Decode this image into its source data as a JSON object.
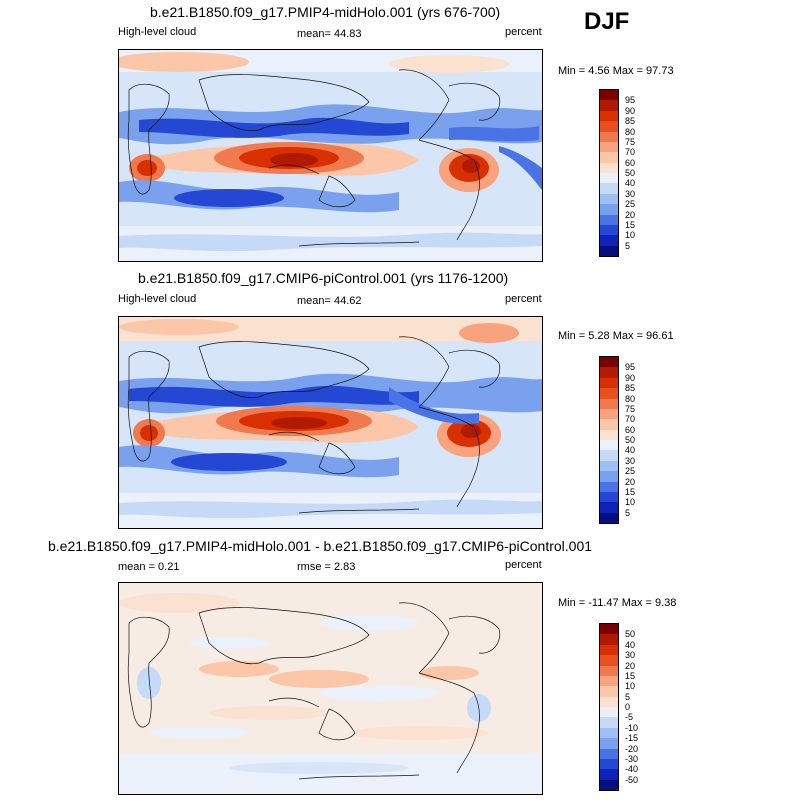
{
  "season": "DJF",
  "panels": [
    {
      "title": "b.e21.B1850.f09_g17.PMIP4-midHolo.001 (yrs 676-700)",
      "left_label": "High-level cloud",
      "center_label": "mean=  44.83",
      "right_label": "percent",
      "minmax": "Min =  4.56 Max =  97.73",
      "colorbar_labels": [
        "95",
        "90",
        "85",
        "80",
        "75",
        "70",
        "60",
        "50",
        "40",
        "30",
        "25",
        "20",
        "15",
        "10",
        "5"
      ],
      "colorbar_colors": [
        "#7a0000",
        "#b01a00",
        "#d83000",
        "#e8501f",
        "#f07a4e",
        "#f8a27e",
        "#fcc6a8",
        "#fbe1cf",
        "#eaf1fa",
        "#c5daf6",
        "#9fc0f5",
        "#7aa1ee",
        "#4a74e6",
        "#2447d4",
        "#0f22b8",
        "#05107e"
      ]
    },
    {
      "title": "b.e21.B1850.f09_g17.CMIP6-piControl.001 (yrs 1176-1200)",
      "left_label": "High-level cloud",
      "center_label": "mean=  44.62",
      "right_label": "percent",
      "minmax": "Min =  5.28 Max =  96.61",
      "colorbar_labels": [
        "95",
        "90",
        "85",
        "80",
        "75",
        "70",
        "60",
        "50",
        "40",
        "30",
        "25",
        "20",
        "15",
        "10",
        "5"
      ],
      "colorbar_colors": [
        "#7a0000",
        "#b01a00",
        "#d83000",
        "#e8501f",
        "#f07a4e",
        "#f8a27e",
        "#fcc6a8",
        "#fbe1cf",
        "#eaf1fa",
        "#c5daf6",
        "#9fc0f5",
        "#7aa1ee",
        "#4a74e6",
        "#2447d4",
        "#0f22b8",
        "#05107e"
      ]
    },
    {
      "title": "b.e21.B1850.f09_g17.PMIP4-midHolo.001 - b.e21.B1850.f09_g17.CMIP6-piControl.001",
      "left_label": "mean =   0.21",
      "center_label": "rmse =   2.83",
      "right_label": "percent",
      "minmax": "Min = -11.47 Max =   9.38",
      "colorbar_labels": [
        "50",
        "40",
        "30",
        "20",
        "15",
        "10",
        "5",
        "0",
        "-5",
        "-10",
        "-15",
        "-20",
        "-30",
        "-40",
        "-50"
      ],
      "colorbar_colors": [
        "#7a0000",
        "#b01a00",
        "#d83000",
        "#e8501f",
        "#f07a4e",
        "#f8a27e",
        "#fcc6a8",
        "#fbe1cf",
        "#eaf1fa",
        "#c5daf6",
        "#9fc0f5",
        "#7aa1ee",
        "#4a74e6",
        "#2447d4",
        "#0f22b8",
        "#05107e"
      ]
    }
  ]
}
